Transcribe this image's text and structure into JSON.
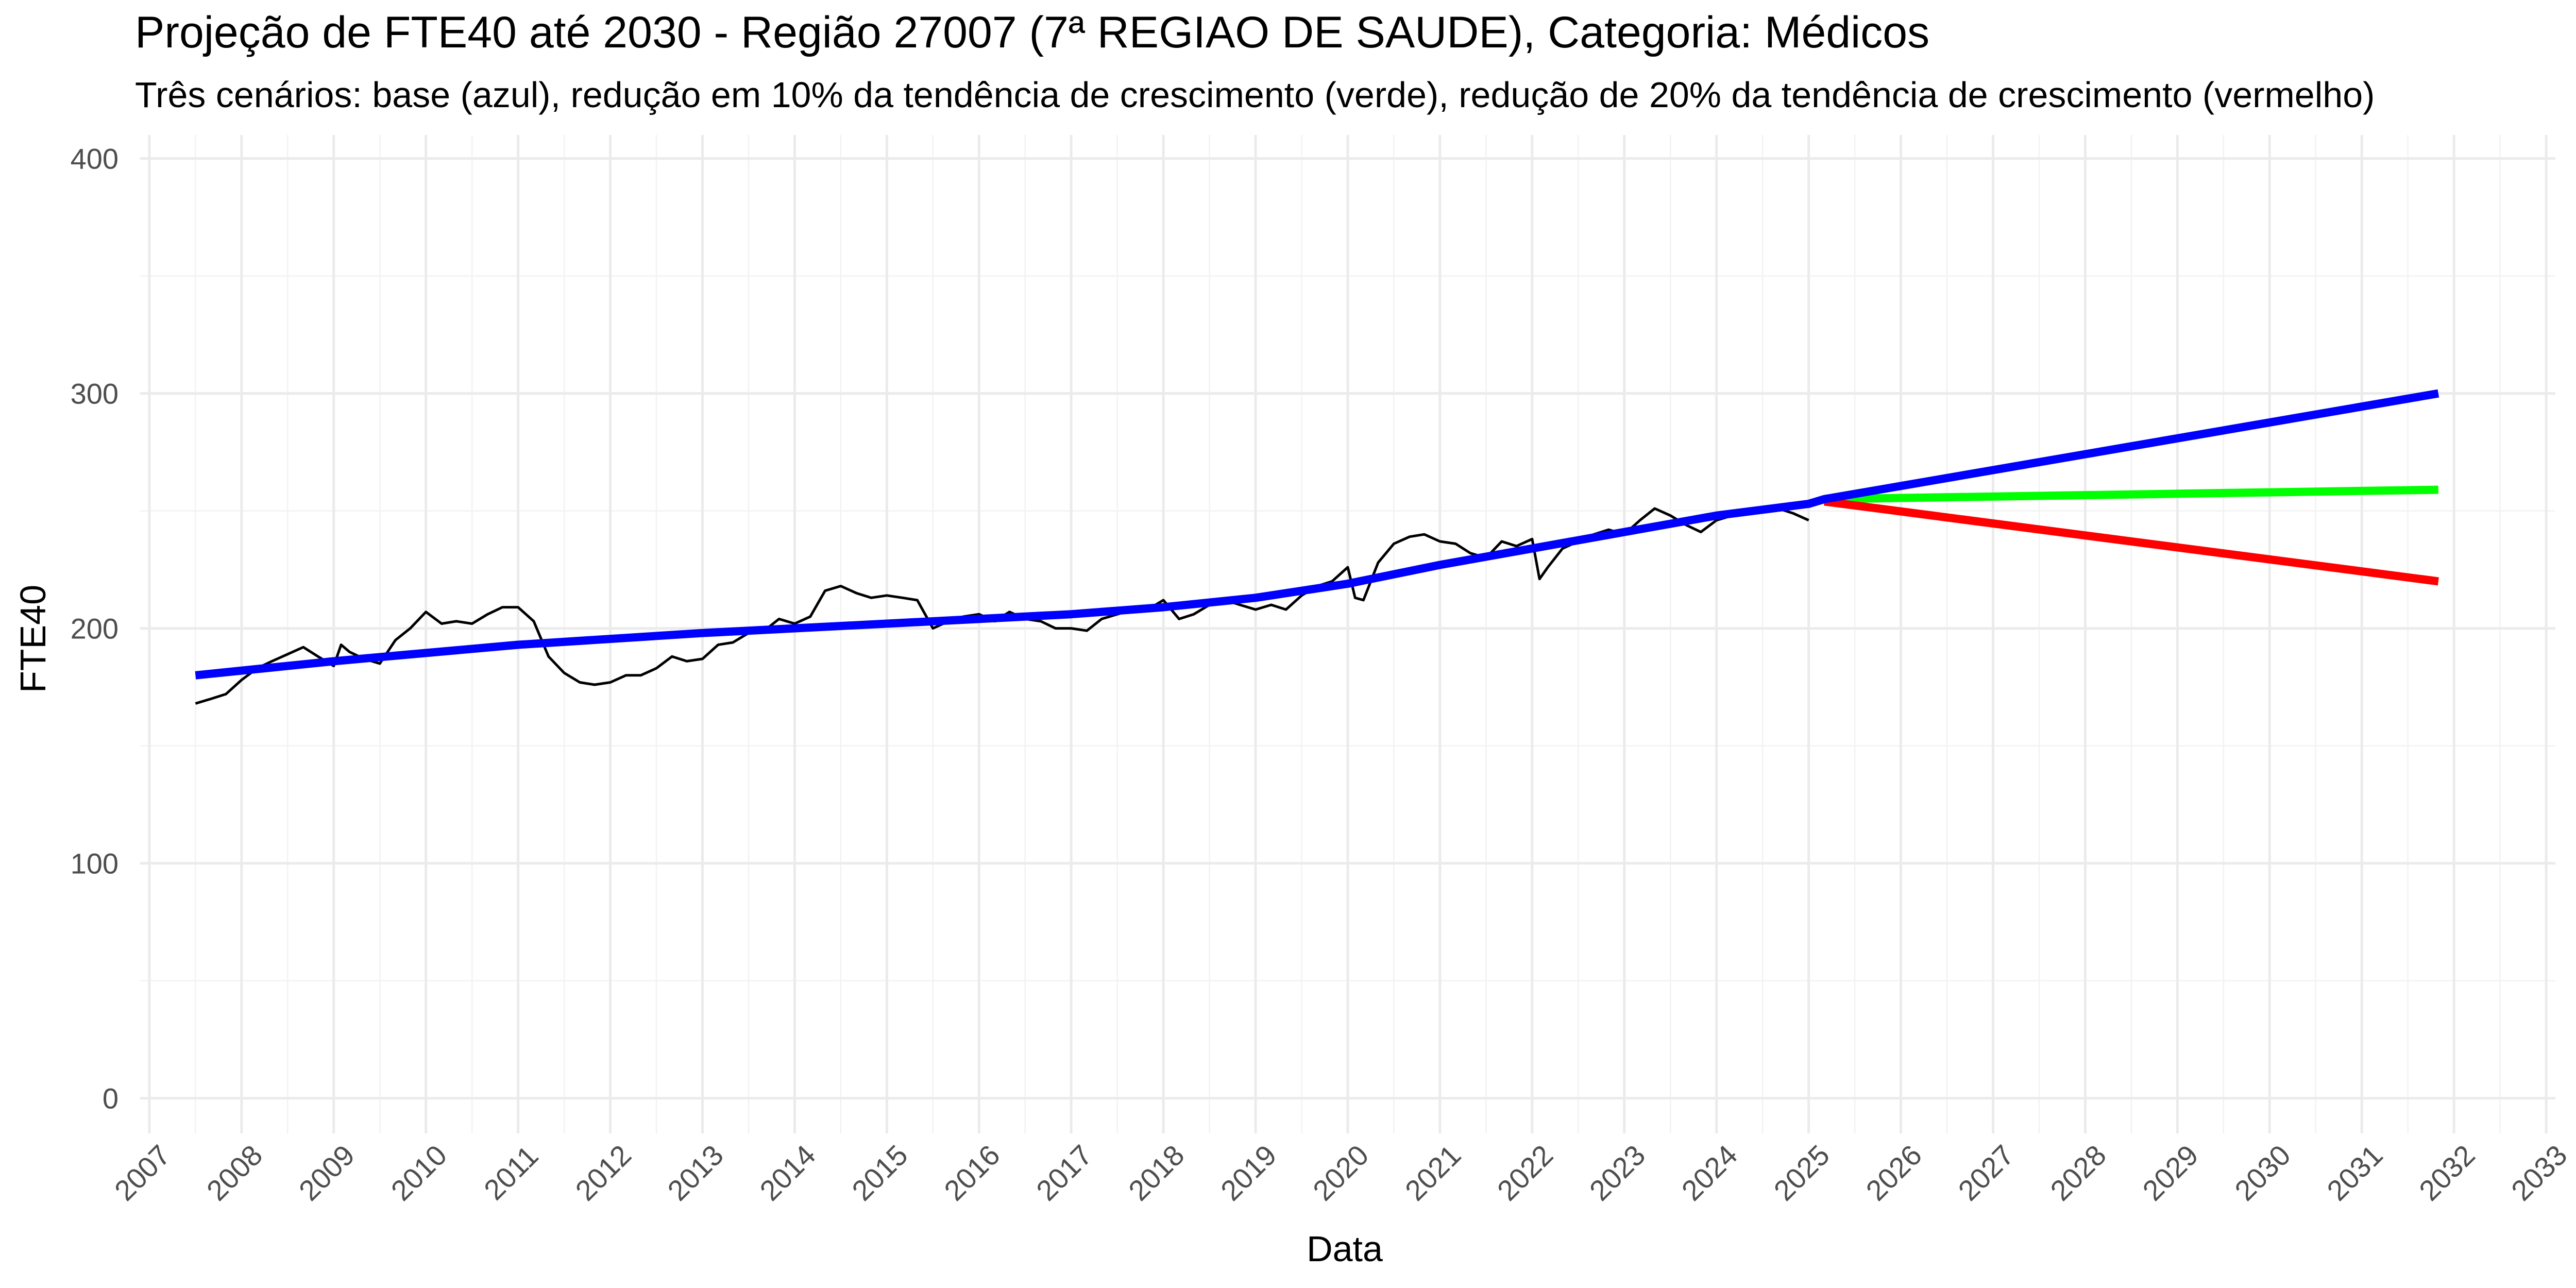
{
  "chart_data": {
    "type": "line",
    "title": "Projeção de FTE40 até 2030 - Região 27007 (7ª REGIAO DE SAUDE), Categoria: Médicos",
    "subtitle": "Três cenários: base (azul), redução em 10% da tendência de crescimento (verde), redução de 20% da tendência de crescimento (vermelho)",
    "xlabel": "Data",
    "ylabel": "FTE40",
    "xlim": [
      2006.9,
      2033.1
    ],
    "ylim": [
      -15,
      410
    ],
    "x_ticks": [
      2007,
      2008,
      2009,
      2010,
      2011,
      2012,
      2013,
      2014,
      2015,
      2016,
      2017,
      2018,
      2019,
      2020,
      2021,
      2022,
      2023,
      2024,
      2025,
      2026,
      2027,
      2028,
      2029,
      2030,
      2031,
      2032,
      2033
    ],
    "x_tick_labels": [
      "2007",
      "2008",
      "2009",
      "2010",
      "2011",
      "2012",
      "2013",
      "2014",
      "2015",
      "2016",
      "2017",
      "2018",
      "2019",
      "2020",
      "2021",
      "2022",
      "2023",
      "2024",
      "2025",
      "2026",
      "2027",
      "2028",
      "2029",
      "2030",
      "2031",
      "2032",
      "2033"
    ],
    "y_ticks": [
      0,
      100,
      200,
      300,
      400
    ],
    "y_tick_labels": [
      "0",
      "100",
      "200",
      "300",
      "400"
    ],
    "grid": true,
    "legend": "none",
    "series": [
      {
        "color": "#000000",
        "x": [
          2007.5,
          2007.67,
          2007.83,
          2008.0,
          2008.17,
          2008.33,
          2008.5,
          2008.67,
          2008.83,
          2009.0,
          2009.08,
          2009.17,
          2009.33,
          2009.5,
          2009.67,
          2009.83,
          2010.0,
          2010.17,
          2010.33,
          2010.5,
          2010.67,
          2010.83,
          2011.0,
          2011.17,
          2011.33,
          2011.5,
          2011.67,
          2011.83,
          2012.0,
          2012.17,
          2012.33,
          2012.5,
          2012.67,
          2012.83,
          2013.0,
          2013.17,
          2013.33,
          2013.5,
          2013.67,
          2013.83,
          2014.0,
          2014.17,
          2014.33,
          2014.5,
          2014.67,
          2014.83,
          2015.0,
          2015.17,
          2015.33,
          2015.5,
          2015.67,
          2015.83,
          2016.0,
          2016.17,
          2016.33,
          2016.5,
          2016.67,
          2016.83,
          2017.0,
          2017.17,
          2017.33,
          2017.5,
          2017.67,
          2017.83,
          2018.0,
          2018.17,
          2018.33,
          2018.5,
          2018.67,
          2018.83,
          2019.0,
          2019.17,
          2019.33,
          2019.5,
          2019.67,
          2019.83,
          2020.0,
          2020.08,
          2020.17,
          2020.33,
          2020.5,
          2020.67,
          2020.83,
          2021.0,
          2021.17,
          2021.33,
          2021.5,
          2021.67,
          2021.83,
          2022.0,
          2022.08,
          2022.17,
          2022.33,
          2022.5,
          2022.67,
          2022.83,
          2023.0,
          2023.17,
          2023.33,
          2023.5,
          2023.67,
          2023.83,
          2024.0,
          2024.17,
          2024.33,
          2024.5,
          2024.67,
          2024.83,
          2025.0
        ],
        "values": [
          168,
          170,
          172,
          178,
          183,
          186,
          189,
          192,
          188,
          184,
          193,
          190,
          187,
          185,
          195,
          200,
          207,
          202,
          203,
          202,
          206,
          209,
          209,
          203,
          188,
          181,
          177,
          176,
          177,
          180,
          180,
          183,
          188,
          186,
          187,
          193,
          194,
          198,
          199,
          204,
          202,
          205,
          216,
          218,
          215,
          213,
          214,
          213,
          212,
          200,
          203,
          205,
          206,
          203,
          207,
          204,
          203,
          200,
          200,
          199,
          204,
          206,
          208,
          208,
          212,
          204,
          206,
          210,
          212,
          210,
          208,
          210,
          208,
          214,
          218,
          220,
          226,
          213,
          212,
          228,
          236,
          239,
          240,
          237,
          236,
          232,
          230,
          237,
          235,
          238,
          221,
          226,
          234,
          237,
          240,
          242,
          240,
          246,
          251,
          248,
          244,
          241,
          246,
          248,
          250,
          250,
          251,
          249,
          246
        ]
      },
      {
        "color": "#0000ff",
        "x": [
          2007.5,
          2009.0,
          2011.0,
          2013.0,
          2015.0,
          2017.0,
          2018.0,
          2019.0,
          2020.0,
          2021.0,
          2022.0,
          2023.0,
          2024.0,
          2025.0,
          2025.17,
          2031.83
        ],
        "values": [
          180,
          186,
          193,
          198,
          202,
          206,
          209,
          213,
          219,
          227,
          234,
          241,
          248,
          253,
          255,
          300
        ]
      },
      {
        "color": "#00ff00",
        "x": [
          2025.17,
          2031.83
        ],
        "values": [
          255,
          259
        ]
      },
      {
        "color": "#ff0000",
        "x": [
          2025.17,
          2031.83
        ],
        "values": [
          254,
          220
        ]
      }
    ]
  }
}
